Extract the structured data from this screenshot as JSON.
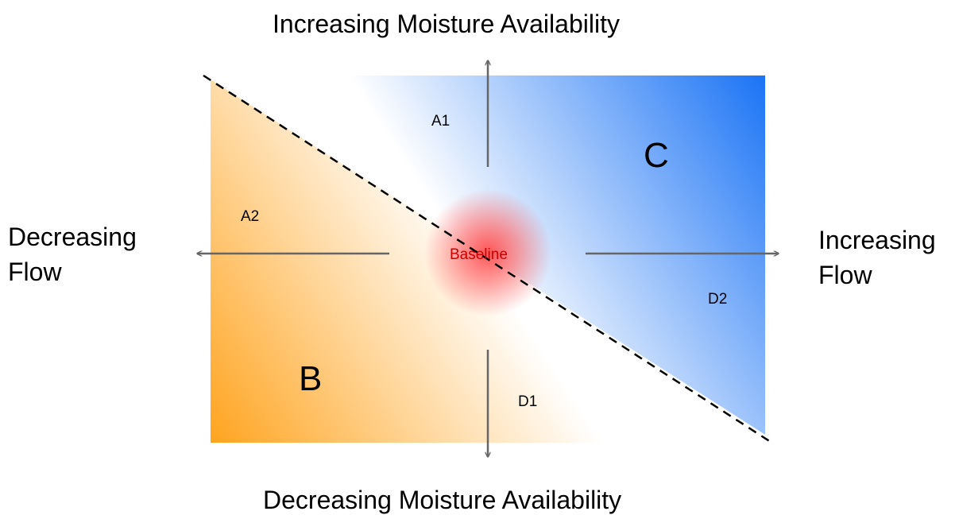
{
  "labels": {
    "top": "Increasing Moisture Availability",
    "bottom": "Decreasing Moisture Availability",
    "left": "Decreasing\nFlow",
    "right": "Increasing\nFlow",
    "baseline": "Baseline",
    "a1": "A1",
    "a2": "A2",
    "d1": "D1",
    "d2": "D2",
    "region_b": "B",
    "region_c": "C"
  },
  "colors": {
    "wet": "#1a73f5",
    "dry": "#ffa41f",
    "baseline_glow": "#ff4d4d",
    "baseline_text": "#cc0000",
    "arrow": "#666666",
    "divider": "#000000"
  }
}
